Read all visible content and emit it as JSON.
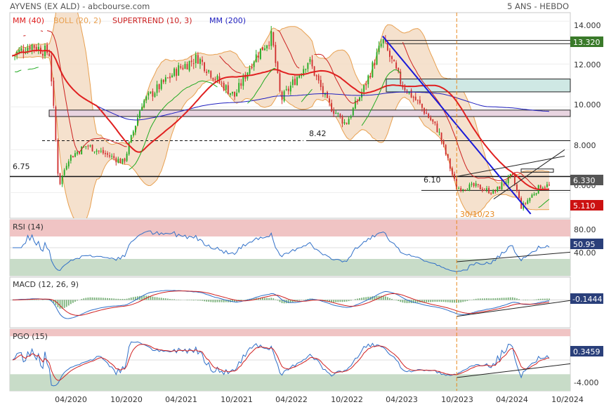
{
  "header": {
    "title": "AYVENS (EX ALD) - abcbourse.com",
    "period": "5 ANS - HEBDO"
  },
  "colors": {
    "up": "#22aa22",
    "down": "#d03030",
    "ma40": "#e02020",
    "boll": "#e8a050",
    "bollFill": "#f3dcc4",
    "supertrend_up": "#22aa22",
    "supertrend_down": "#cc2020",
    "ma200": "#2020c0",
    "rsi": "#2f6fc8",
    "signal": "#d02020",
    "zoneRed": "#f0c4c4",
    "zoneGreen": "#c8dcc8",
    "accent_vline": "#e88a20",
    "trend_blue": "#1a1ad8",
    "last_price_box": "#555555",
    "support_box": "#cc1111",
    "resist_box": "#3a7a2a",
    "macd_box": "#2a3f7a"
  },
  "main_legend": [
    {
      "label": "MM (40)",
      "color": "#e02020"
    },
    {
      "label": "BOLL (20, 2)",
      "color": "#e8a050"
    },
    {
      "label": "SUPERTREND (10, 3)",
      "color": "#cc2020"
    },
    {
      "label": "MM (200)",
      "color": "#2020c0"
    }
  ],
  "x_labels": [
    "04/2020",
    "10/2020",
    "04/2021",
    "10/2021",
    "04/2022",
    "10/2022",
    "04/2023",
    "10/2023",
    "04/2024",
    "10/2024"
  ],
  "price_axis": {
    "labels": [
      "14.000",
      "12.000",
      "10.000",
      "8.000",
      "6.000"
    ],
    "min": 4.8,
    "max": 14.4
  },
  "price_tags": {
    "last": "6.330",
    "resist": "13.320",
    "support": "5.110"
  },
  "levels": {
    "l675": "6.75",
    "l842": "8.42",
    "l610": "6.10"
  },
  "event_label": "30/10/23",
  "rsi": {
    "title": "RSI (14)",
    "axis": [
      "80.00",
      "40.00"
    ],
    "value": "50.95",
    "min": 0,
    "max": 100
  },
  "macd": {
    "title": "MACD (12, 26, 9)",
    "value": "-0.1444",
    "min": -2.2,
    "max": 1.8
  },
  "pgo": {
    "title": "PGO (15)",
    "axis": [
      "-4.000"
    ],
    "value": "0.3459",
    "min": -6.5,
    "max": 6.5
  },
  "chart_data": {
    "type": "candlestick",
    "title": "AYVENS (EX ALD) - abcbourse.com",
    "period": "5 ANS - HEBDO",
    "x_range": [
      "2019-10",
      "2024-10"
    ],
    "price_close_points": [
      {
        "date": "2019-10",
        "value": 12.4
      },
      {
        "date": "2019-12",
        "value": 12.9
      },
      {
        "date": "2020-02",
        "value": 12.5
      },
      {
        "date": "2020-03",
        "value": 6.3
      },
      {
        "date": "2020-04",
        "value": 7.6
      },
      {
        "date": "2020-06",
        "value": 8.2
      },
      {
        "date": "2020-08",
        "value": 7.8
      },
      {
        "date": "2020-10",
        "value": 7.4
      },
      {
        "date": "2020-12",
        "value": 10.2
      },
      {
        "date": "2021-02",
        "value": 11.0
      },
      {
        "date": "2021-04",
        "value": 11.8
      },
      {
        "date": "2021-06",
        "value": 12.3
      },
      {
        "date": "2021-08",
        "value": 11.3
      },
      {
        "date": "2021-10",
        "value": 10.5
      },
      {
        "date": "2021-12",
        "value": 12.2
      },
      {
        "date": "2022-02",
        "value": 13.3
      },
      {
        "date": "2022-03",
        "value": 10.3
      },
      {
        "date": "2022-06",
        "value": 12.2
      },
      {
        "date": "2022-08",
        "value": 10.2
      },
      {
        "date": "2022-10",
        "value": 9.2
      },
      {
        "date": "2022-12",
        "value": 10.9
      },
      {
        "date": "2023-02",
        "value": 13.1
      },
      {
        "date": "2023-04",
        "value": 11.1
      },
      {
        "date": "2023-06",
        "value": 10.1
      },
      {
        "date": "2023-08",
        "value": 8.9
      },
      {
        "date": "2023-10",
        "value": 6.2
      },
      {
        "date": "2023-12",
        "value": 6.3
      },
      {
        "date": "2024-02",
        "value": 6.0
      },
      {
        "date": "2024-04",
        "value": 6.8
      },
      {
        "date": "2024-05",
        "value": 5.3
      },
      {
        "date": "2024-07",
        "value": 6.3
      },
      {
        "date": "2024-08",
        "value": 6.33
      }
    ],
    "levels": [
      6.75,
      8.42,
      6.1
    ],
    "last": 6.33,
    "resistance_marker": 13.32,
    "support_marker": 5.11,
    "event": {
      "date": "2023-10-30",
      "label": "30/10/23"
    },
    "indicators": [
      {
        "name": "RSI (14)",
        "last": 50.95,
        "axis": [
          80,
          40
        ]
      },
      {
        "name": "MACD (12, 26, 9)",
        "last": -0.1444
      },
      {
        "name": "PGO (15)",
        "last": 0.3459,
        "axis": [
          -4
        ]
      }
    ]
  }
}
